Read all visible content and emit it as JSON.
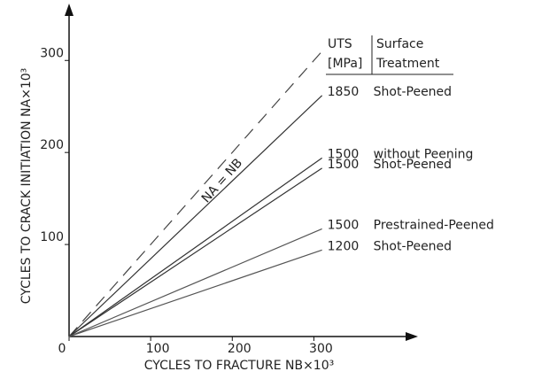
{
  "chart_data": {
    "type": "line",
    "y_label": "CYCLES TO CRACK INITIATION NA×10³",
    "x_label": "CYCLES TO FRACTURE NB×10³",
    "legend_headers": {
      "uts": "UTS",
      "uts_unit": "[MPa]",
      "treatment": "Surface",
      "treatment2": "Treatment"
    },
    "reference": {
      "label": "NA = NB",
      "x": [
        0,
        310
      ],
      "values": [
        0,
        310
      ],
      "color": "#444"
    },
    "xlim": [
      0,
      420
    ],
    "ylim": [
      0,
      358
    ],
    "xticks": [
      0,
      100,
      200,
      300
    ],
    "yticks": [
      100,
      200,
      300
    ],
    "series": [
      {
        "uts": "1850",
        "treatment": "Shot-Peened",
        "color": "#333",
        "x": [
          0,
          310
        ],
        "values": [
          0,
          262
        ]
      },
      {
        "uts": "1500",
        "treatment": "without Peening",
        "color": "#333",
        "x": [
          0,
          310
        ],
        "values": [
          0,
          194
        ]
      },
      {
        "uts": "1500",
        "treatment": "Shot-Peened",
        "color": "#333",
        "x": [
          0,
          310
        ],
        "values": [
          0,
          183
        ]
      },
      {
        "uts": "1500",
        "treatment": "Prestrained-Peened",
        "color": "#555",
        "x": [
          0,
          310
        ],
        "values": [
          0,
          117
        ]
      },
      {
        "uts": "1200",
        "treatment": "Shot-Peened",
        "color": "#555",
        "x": [
          0,
          310
        ],
        "values": [
          0,
          94
        ]
      }
    ]
  }
}
